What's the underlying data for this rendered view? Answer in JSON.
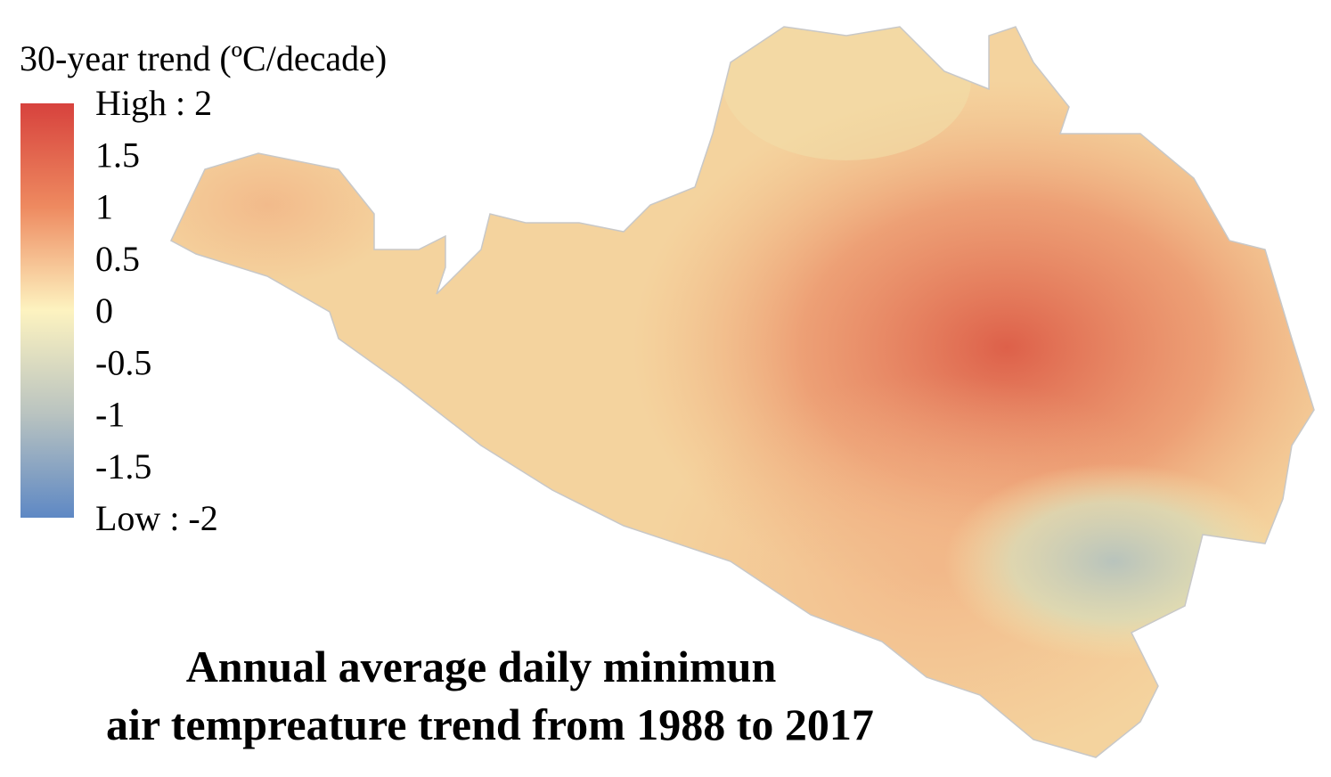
{
  "legend": {
    "title": "30-year trend (ºC/decade)",
    "labels": [
      "High : 2",
      "1.5",
      "1",
      "0.5",
      "0",
      "-0.5",
      "-1",
      "-1.5",
      "Low : -2"
    ]
  },
  "title": {
    "lines": [
      "Annual average daily minimun",
      "air tempreature trend from 1988 to 2017"
    ]
  }
}
